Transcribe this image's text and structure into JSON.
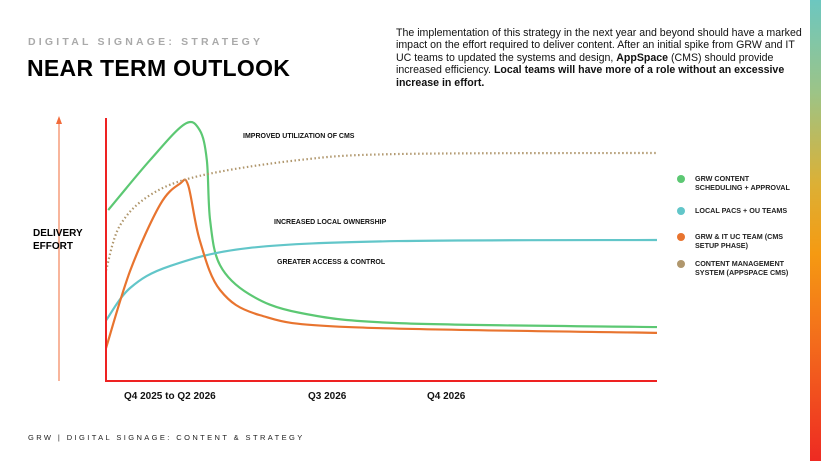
{
  "header": {
    "kicker": "DIGITAL SIGNAGE: STRATEGY",
    "title": "NEAR TERM OUTLOOK"
  },
  "intro": {
    "part1": "The implementation of this strategy in the next year and beyond should have a marked impact on the effort required to deliver content. After an initial spike from GRW and IT UC teams to updated the systems and design, ",
    "bold1": "AppSpace",
    "part2": " (CMS) should provide increased efficiency. ",
    "bold2": "Local teams will have more of a role without an excessive increase in effort."
  },
  "footer": "GRW | DIGITAL SIGNAGE: CONTENT & STRATEGY",
  "chart_data": {
    "type": "line",
    "ylabel": "DELIVERY EFFORT",
    "xlabel": "",
    "xlim": [
      0,
      100
    ],
    "ylim": [
      0,
      100
    ],
    "x_ticks": [
      {
        "label": "Q4 2025 to Q2 2026",
        "x": 13
      },
      {
        "label": "Q3 2026",
        "x": 40
      },
      {
        "label": "Q4 2026",
        "x": 62
      }
    ],
    "annotations": [
      "IMPROVED UTILIZATION OF CMS",
      "INCREASED LOCAL OWNERSHIP",
      "GREATER ACCESS & CONTROL"
    ],
    "series": [
      {
        "name": "GRW CONTENT SCHEDULING + APPROVAL",
        "color": "#5cc873",
        "style": "solid",
        "points": [
          [
            0.4,
            65
          ],
          [
            8,
            84
          ],
          [
            14.3,
            97.7
          ],
          [
            17,
            95.4
          ],
          [
            18.3,
            84
          ],
          [
            18.9,
            61
          ],
          [
            20.7,
            44
          ],
          [
            26,
            33
          ],
          [
            35,
            26
          ],
          [
            53,
            22
          ],
          [
            100,
            20.5
          ]
        ]
      },
      {
        "name": "LOCAL PACS +  OU TEAMS",
        "color": "#62c6c9",
        "style": "solid",
        "points": [
          [
            0,
            23
          ],
          [
            4.4,
            35.4
          ],
          [
            11.6,
            43.7
          ],
          [
            26,
            50.6
          ],
          [
            53,
            53.2
          ],
          [
            100,
            53.6
          ]
        ]
      },
      {
        "name": "GRW & IT UC TEAM (CMS SETUP PHASE)",
        "color": "#e8742f",
        "style": "solid",
        "points": [
          [
            0,
            12.5
          ],
          [
            4.4,
            42
          ],
          [
            9.8,
            67
          ],
          [
            13.4,
            75
          ],
          [
            14.9,
            74.5
          ],
          [
            17,
            53.6
          ],
          [
            20.7,
            34.6
          ],
          [
            28,
            25
          ],
          [
            44,
            20.5
          ],
          [
            100,
            18.3
          ]
        ]
      },
      {
        "name": "CONTENT MANAGEMENT SYSTEM (APPSPACE CMS)",
        "color": "#b0976d",
        "style": "dotted",
        "points": [
          [
            0,
            42
          ],
          [
            2.5,
            59
          ],
          [
            8,
            70.7
          ],
          [
            17,
            78
          ],
          [
            35,
            84
          ],
          [
            53,
            86.3
          ],
          [
            100,
            86.7
          ]
        ]
      }
    ]
  }
}
